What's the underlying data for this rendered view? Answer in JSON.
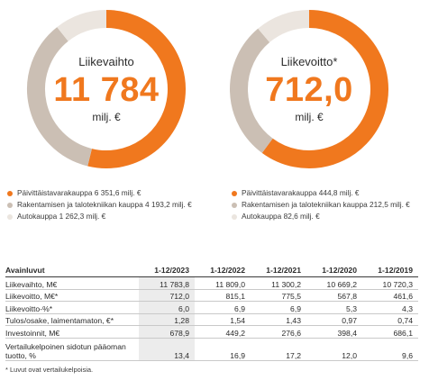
{
  "colors": {
    "orange": "#f0781e",
    "taupe": "#cbbfb4",
    "light": "#ebe5df"
  },
  "left_chart": {
    "title": "Liikevaihto",
    "value": "11 784",
    "unit": "milj. €",
    "legend": [
      {
        "label": "Päivittäistavarakauppa 6 351,6 milj. €",
        "color": "#f0781e"
      },
      {
        "label": "Rakentamisen ja talotekniikan kauppa 4 193,2 milj. €",
        "color": "#cbbfb4"
      },
      {
        "label": "Autokauppa 1 262,3 milj. €",
        "color": "#ebe5df"
      }
    ]
  },
  "right_chart": {
    "title": "Liikevoitto*",
    "value": "712,0",
    "unit": "milj. €",
    "legend": [
      {
        "label": "Päivittäistavarakauppa 444,8 milj. €",
        "color": "#f0781e"
      },
      {
        "label": "Rakentamisen ja talotekniikan kauppa 212,5 milj. €",
        "color": "#cbbfb4"
      },
      {
        "label": "Autokauppa 82,6 milj. €",
        "color": "#ebe5df"
      }
    ]
  },
  "chart_data": [
    {
      "type": "pie",
      "title": "Liikevaihto",
      "categories": [
        "Päivittäistavarakauppa",
        "Rakentamisen ja talotekniikan kauppa",
        "Autokauppa"
      ],
      "values": [
        6351.6,
        4193.2,
        1262.3
      ]
    },
    {
      "type": "pie",
      "title": "Liikevoitto*",
      "categories": [
        "Päivittäistavarakauppa",
        "Rakentamisen ja talotekniikan kauppa",
        "Autokauppa"
      ],
      "values": [
        444.8,
        212.5,
        82.6
      ]
    }
  ],
  "table": {
    "headers": [
      "Avainluvut",
      "1-12/2023",
      "1-12/2022",
      "1-12/2021",
      "1-12/2020",
      "1-12/2019"
    ],
    "rows": [
      {
        "label": "Liikevaihto, M€",
        "values": [
          "11 783,8",
          "11 809,0",
          "11 300,2",
          "10 669,2",
          "10 720,3"
        ]
      },
      {
        "label": "Liikevoitto, M€*",
        "values": [
          "712,0",
          "815,1",
          "775,5",
          "567,8",
          "461,6"
        ]
      },
      {
        "label": "Liikevoitto-%*",
        "values": [
          "6,0",
          "6,9",
          "6,9",
          "5,3",
          "4,3"
        ]
      },
      {
        "label": "Tulos/osake, laimentamaton, €*",
        "values": [
          "1,28",
          "1,54",
          "1,43",
          "0,97",
          "0,74"
        ]
      },
      {
        "label": "Investoinnit, M€",
        "values": [
          "678,9",
          "449,2",
          "276,6",
          "398,4",
          "686,1"
        ]
      },
      {
        "label": "Vertailukelpoinen sidotun pääoman tuotto, %",
        "values": [
          "13,4",
          "16,9",
          "17,2",
          "12,0",
          "9,6"
        ]
      }
    ]
  },
  "footnote": "* Luvut ovat vertailukelpoisia."
}
